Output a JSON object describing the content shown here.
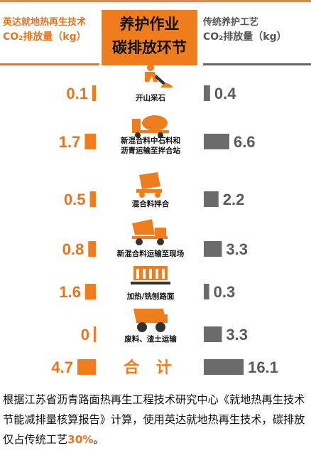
{
  "header": {
    "left_line1": "英达就地热再生技术",
    "left_line2": "CO₂排放量（kg）",
    "center_line1": "养护作业",
    "center_line2": "碳排放环节",
    "right_line1": "传统养护工艺",
    "right_line2": "CO₂排放量（kg）"
  },
  "chart_data": {
    "type": "bar",
    "categories": [
      "开山采石",
      "新混合料中石料和沥青运输至拌合站",
      "混合料拌合",
      "新混合料运输至现场",
      "加热/铣刨路面",
      "废料、渣土运输",
      "合计"
    ],
    "category_lines": [
      [
        "开山采石"
      ],
      [
        "新混合料中石料和",
        "沥青运输至拌合站"
      ],
      [
        "混合料拌合"
      ],
      [
        "新混合料运输至现场"
      ],
      [
        "加热/铣刨路面"
      ],
      [
        "废料、渣土运输"
      ],
      [
        "合 计"
      ]
    ],
    "icons": [
      "worker-shovel-icon",
      "mixer-truck-icon",
      "concrete-mixer-icon",
      "dump-truck-icon",
      "road-heater-icon",
      "mining-truck-icon",
      ""
    ],
    "series": [
      {
        "name": "英达就地热再生技术CO₂排放量（kg）",
        "values": [
          0.1,
          1.7,
          0.5,
          0.8,
          1.6,
          0,
          4.7
        ],
        "labels": [
          "0.1",
          "1.7",
          "0.5",
          "0.8",
          "1.6",
          "0",
          "4.7"
        ],
        "color": "#f07d1c"
      },
      {
        "name": "传统养护工艺CO₂排放量（kg）",
        "values": [
          0.4,
          6.6,
          2.2,
          3.3,
          0.3,
          3.3,
          16.1
        ],
        "labels": [
          "0.4",
          "6.6",
          "2.2",
          "3.3",
          "0.3",
          "3.3",
          "16.1"
        ],
        "color": "#6b6b6b"
      }
    ]
  },
  "footer": {
    "text": "根据江苏省沥青路面热再生工程技术研究中心《就地热再生技术节能减排量核算报告》计算，使用英达就地热再生技术，碳排放仅占传统工艺",
    "highlight": "30%",
    "end": "。"
  }
}
